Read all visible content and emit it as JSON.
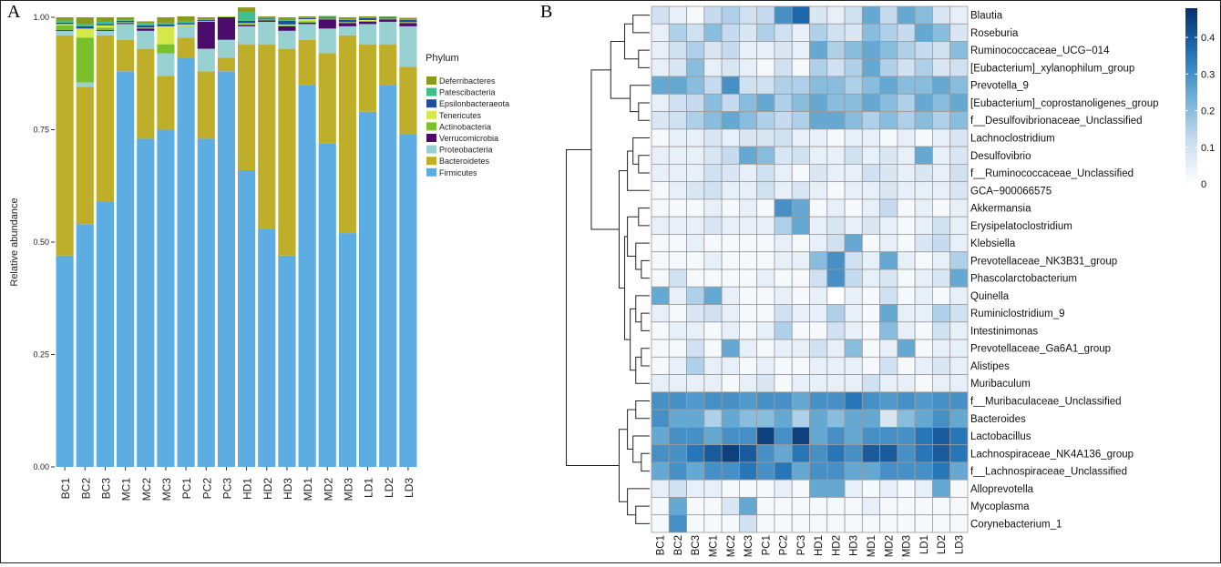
{
  "panels": {
    "a": "A",
    "b": "B"
  },
  "chart_data": [
    {
      "type": "bar",
      "stacked": true,
      "ylabel": "Relative abundance",
      "ylim": [
        0,
        1
      ],
      "yticks": [
        "0.00",
        "0.25",
        "0.50",
        "0.75",
        "1.00"
      ],
      "legend_title": "Phylum",
      "legend_position": "right",
      "categories": [
        "BC1",
        "BC2",
        "BC3",
        "MC1",
        "MC2",
        "MC3",
        "PC1",
        "PC2",
        "PC3",
        "HD1",
        "HD2",
        "HD3",
        "MD1",
        "MD2",
        "MD3",
        "LD1",
        "LD2",
        "LD3"
      ],
      "series": [
        {
          "name": "Firmicutes",
          "color": "#5dade2",
          "values": [
            0.47,
            0.54,
            0.59,
            0.88,
            0.73,
            0.75,
            0.91,
            0.73,
            0.88,
            0.66,
            0.53,
            0.47,
            0.85,
            0.72,
            0.52,
            0.79,
            0.85,
            0.74
          ]
        },
        {
          "name": "Bacteroidetes",
          "color": "#bfae2a",
          "values": [
            0.49,
            0.305,
            0.37,
            0.07,
            0.2,
            0.12,
            0.045,
            0.15,
            0.03,
            0.28,
            0.41,
            0.46,
            0.1,
            0.2,
            0.44,
            0.15,
            0.09,
            0.15
          ]
        },
        {
          "name": "Proteobacteria",
          "color": "#98d1d1",
          "values": [
            0.01,
            0.01,
            0.01,
            0.035,
            0.04,
            0.05,
            0.025,
            0.05,
            0.04,
            0.04,
            0.05,
            0.04,
            0.035,
            0.055,
            0.02,
            0.045,
            0.05,
            0.09
          ]
        },
        {
          "name": "Verrucomicrobia",
          "color": "#4b0c6b",
          "values": [
            0.002,
            0.0,
            0.002,
            0.002,
            0.005,
            0.0,
            0.0,
            0.06,
            0.05,
            0.003,
            0.003,
            0.01,
            0.003,
            0.02,
            0.007,
            0.005,
            0.005,
            0.007
          ]
        },
        {
          "name": "Actinobacteria",
          "color": "#7bbf2a",
          "values": [
            0.01,
            0.1,
            0.005,
            0.001,
            0.001,
            0.02,
            0.001,
            0.001,
            0.001,
            0.002,
            0.001,
            0.002,
            0.003,
            0.001,
            0.001,
            0.002,
            0.001,
            0.001
          ]
        },
        {
          "name": "Tenericutes",
          "color": "#d4e84a",
          "values": [
            0.003,
            0.02,
            0.005,
            0.001,
            0.001,
            0.04,
            0.003,
            0.001,
            0.001,
            0.002,
            0.001,
            0.002,
            0.005,
            0.001,
            0.001,
            0.002,
            0.001,
            0.001
          ]
        },
        {
          "name": "Epsilonbacteraeota",
          "color": "#1f4e9c",
          "values": [
            0.003,
            0.005,
            0.003,
            0.003,
            0.005,
            0.004,
            0.003,
            0.002,
            0.0,
            0.005,
            0.002,
            0.008,
            0.002,
            0.002,
            0.005,
            0.004,
            0.002,
            0.005
          ]
        },
        {
          "name": "Patescibacteria",
          "color": "#3fbf8f",
          "values": [
            0.005,
            0.005,
            0.005,
            0.003,
            0.005,
            0.004,
            0.005,
            0.002,
            0.0,
            0.02,
            0.002,
            0.002,
            0.002,
            0.002,
            0.002,
            0.002,
            0.002,
            0.002
          ]
        },
        {
          "name": "Deferribacteres",
          "color": "#8a9a1b",
          "values": [
            0.007,
            0.015,
            0.01,
            0.005,
            0.004,
            0.012,
            0.01,
            0.004,
            0.0,
            0.01,
            0.003,
            0.006,
            0.002,
            0.002,
            0.004,
            0.002,
            0.001,
            0.003
          ]
        }
      ]
    },
    {
      "type": "heatmap",
      "columns": [
        "BC1",
        "BC2",
        "BC3",
        "MC1",
        "MC2",
        "MC3",
        "PC1",
        "PC2",
        "PC3",
        "HD1",
        "HD2",
        "HD3",
        "MD1",
        "MD2",
        "MD3",
        "LD1",
        "LD2",
        "LD3"
      ],
      "rows": [
        "Blautia",
        "Roseburia",
        "Ruminococcaceae_UCG−014",
        "[Eubacterium]_xylanophilum_group",
        "Prevotella_9",
        "[Eubacterium]_coprostanoligenes_group",
        "f__Desulfovibrionaceae_Unclassified",
        "Lachnoclostridium",
        "Desulfovibrio",
        "f__Ruminococcaceae_Unclassified",
        "GCA−900066575",
        "Akkermansia",
        "Erysipelatoclostridium",
        "Klebsiella",
        "Prevotellaceae_NK3B31_group",
        "Phascolarctobacterium",
        "Quinella",
        "Ruminiclostridium_9",
        "Intestinimonas",
        "Prevotellaceae_Ga6A1_group",
        "Alistipes",
        "Muribaculum",
        "f__Muribaculaceae_Unclassified",
        "Bacteroides",
        "Lactobacillus",
        "Lachnospiraceae_NK4A136_group",
        "f__Lachnospiraceae_Unclassified",
        "Alloprevotella",
        "Mycoplasma",
        "Corynebacterium_1"
      ],
      "values": [
        [
          0.1,
          0.05,
          0.02,
          0.12,
          0.15,
          0.1,
          0.12,
          0.3,
          0.38,
          0.08,
          0.05,
          0.1,
          0.25,
          0.12,
          0.25,
          0.2,
          0.08,
          0.05
        ],
        [
          0.05,
          0.15,
          0.1,
          0.2,
          0.12,
          0.08,
          0.15,
          0.1,
          0.05,
          0.15,
          0.1,
          0.08,
          0.2,
          0.15,
          0.12,
          0.25,
          0.2,
          0.08
        ],
        [
          0.05,
          0.1,
          0.15,
          0.08,
          0.12,
          0.05,
          0.05,
          0.08,
          0.05,
          0.25,
          0.15,
          0.2,
          0.25,
          0.2,
          0.15,
          0.12,
          0.1,
          0.2
        ],
        [
          0.05,
          0.08,
          0.2,
          0.05,
          0.08,
          0.05,
          0.02,
          0.1,
          0.02,
          0.15,
          0.1,
          0.15,
          0.25,
          0.15,
          0.1,
          0.15,
          0.08,
          0.1
        ],
        [
          0.25,
          0.25,
          0.2,
          0.12,
          0.3,
          0.1,
          0.1,
          0.15,
          0.15,
          0.2,
          0.2,
          0.15,
          0.2,
          0.25,
          0.2,
          0.2,
          0.25,
          0.2
        ],
        [
          0.05,
          0.1,
          0.12,
          0.2,
          0.12,
          0.2,
          0.25,
          0.15,
          0.2,
          0.25,
          0.2,
          0.2,
          0.25,
          0.2,
          0.15,
          0.25,
          0.2,
          0.25
        ],
        [
          0.08,
          0.1,
          0.15,
          0.2,
          0.25,
          0.2,
          0.15,
          0.12,
          0.15,
          0.25,
          0.25,
          0.2,
          0.15,
          0.2,
          0.15,
          0.2,
          0.15,
          0.2
        ],
        [
          0.02,
          0.05,
          0.05,
          0.08,
          0.05,
          0.08,
          0.08,
          0.1,
          0.05,
          0.05,
          0.02,
          0.05,
          0.05,
          0.02,
          0.05,
          0.02,
          0.05,
          0.08
        ],
        [
          0.05,
          0.05,
          0.05,
          0.08,
          0.12,
          0.25,
          0.2,
          0.08,
          0.1,
          0.05,
          0.05,
          0.1,
          0.05,
          0.08,
          0.05,
          0.25,
          0.05,
          0.08
        ],
        [
          0.05,
          0.05,
          0.05,
          0.1,
          0.08,
          0.05,
          0.1,
          0.05,
          0.02,
          0.08,
          0.05,
          0.05,
          0.1,
          0.08,
          0.05,
          0.08,
          0.05,
          0.1
        ],
        [
          0.02,
          0.05,
          0.08,
          0.1,
          0.05,
          0.05,
          0.1,
          0.05,
          0.08,
          0.05,
          0.02,
          0.05,
          0.05,
          0.08,
          0.05,
          0.05,
          0.05,
          0.08
        ],
        [
          0.02,
          0.02,
          0.02,
          0.05,
          0.02,
          0.05,
          0.02,
          0.3,
          0.25,
          0.02,
          0.05,
          0.02,
          0.05,
          0.12,
          0.02,
          0.05,
          0.02,
          0.05
        ],
        [
          0.05,
          0.05,
          0.05,
          0.08,
          0.05,
          0.05,
          0.05,
          0.15,
          0.25,
          0.05,
          0.08,
          0.05,
          0.08,
          0.05,
          0.02,
          0.05,
          0.1,
          0.05
        ],
        [
          0.02,
          0.02,
          0.05,
          0.02,
          0.02,
          0.02,
          0.02,
          0.05,
          0.02,
          0.05,
          0.1,
          0.25,
          0.02,
          0.05,
          0.02,
          0.08,
          0.12,
          0.05
        ],
        [
          0.02,
          0.02,
          0.02,
          0.05,
          0.02,
          0.02,
          0.02,
          0.05,
          0.05,
          0.2,
          0.3,
          0.1,
          0.05,
          0.25,
          0.05,
          0.02,
          0.05,
          0.15
        ],
        [
          0.02,
          0.1,
          0.02,
          0.02,
          0.02,
          0.02,
          0.05,
          0.02,
          0.02,
          0.1,
          0.3,
          0.12,
          0.05,
          0.08,
          0.02,
          0.05,
          0.08,
          0.25
        ],
        [
          0.25,
          0.05,
          0.15,
          0.25,
          0.05,
          0.02,
          0.02,
          0.05,
          0.02,
          0.05,
          0.0,
          0.05,
          0.02,
          0.1,
          0.02,
          0.05,
          0.02,
          0.05
        ],
        [
          0.05,
          0.02,
          0.08,
          0.1,
          0.05,
          0.02,
          0.02,
          0.1,
          0.05,
          0.05,
          0.15,
          0.05,
          0.02,
          0.25,
          0.05,
          0.05,
          0.15,
          0.1
        ],
        [
          0.02,
          0.05,
          0.05,
          0.02,
          0.05,
          0.02,
          0.05,
          0.15,
          0.02,
          0.02,
          0.1,
          0.05,
          0.02,
          0.2,
          0.05,
          0.02,
          0.1,
          0.05
        ],
        [
          0.02,
          0.02,
          0.1,
          0.02,
          0.25,
          0.05,
          0.02,
          0.05,
          0.05,
          0.1,
          0.05,
          0.2,
          0.02,
          0.05,
          0.25,
          0.02,
          0.05,
          0.05
        ],
        [
          0.02,
          0.05,
          0.15,
          0.05,
          0.05,
          0.02,
          0.05,
          0.02,
          0.02,
          0.05,
          0.05,
          0.05,
          0.02,
          0.1,
          0.02,
          0.05,
          0.08,
          0.05
        ],
        [
          0.05,
          0.05,
          0.05,
          0.05,
          0.02,
          0.05,
          0.08,
          0.02,
          0.05,
          0.05,
          0.05,
          0.05,
          0.1,
          0.05,
          0.05,
          0.02,
          0.05,
          0.05
        ],
        [
          0.3,
          0.3,
          0.28,
          0.3,
          0.3,
          0.28,
          0.3,
          0.3,
          0.25,
          0.3,
          0.3,
          0.35,
          0.3,
          0.28,
          0.3,
          0.28,
          0.3,
          0.3
        ],
        [
          0.3,
          0.25,
          0.25,
          0.15,
          0.25,
          0.2,
          0.2,
          0.25,
          0.15,
          0.25,
          0.2,
          0.25,
          0.25,
          0.08,
          0.2,
          0.25,
          0.3,
          0.25
        ],
        [
          0.25,
          0.3,
          0.3,
          0.25,
          0.3,
          0.3,
          0.45,
          0.3,
          0.45,
          0.25,
          0.3,
          0.25,
          0.3,
          0.3,
          0.3,
          0.35,
          0.4,
          0.35
        ],
        [
          0.3,
          0.3,
          0.35,
          0.4,
          0.45,
          0.4,
          0.3,
          0.25,
          0.35,
          0.3,
          0.35,
          0.3,
          0.4,
          0.4,
          0.3,
          0.35,
          0.4,
          0.35
        ],
        [
          0.25,
          0.3,
          0.25,
          0.3,
          0.3,
          0.35,
          0.3,
          0.35,
          0.25,
          0.3,
          0.3,
          0.25,
          0.25,
          0.3,
          0.3,
          0.3,
          0.35,
          0.25
        ],
        [
          0.05,
          0.1,
          0.05,
          0.05,
          0.02,
          0.02,
          0.02,
          0.05,
          0.02,
          0.25,
          0.25,
          0.05,
          0.02,
          0.05,
          0.02,
          0.05,
          0.25,
          0.02
        ],
        [
          0.02,
          0.25,
          0.02,
          0.02,
          0.08,
          0.25,
          0.02,
          0.02,
          0.02,
          0.02,
          0.02,
          0.02,
          0.05,
          0.02,
          0.02,
          0.02,
          0.02,
          0.02
        ],
        [
          0.02,
          0.3,
          0.02,
          0.02,
          0.02,
          0.1,
          0.02,
          0.02,
          0.02,
          0.02,
          0.02,
          0.02,
          0.02,
          0.02,
          0.02,
          0.02,
          0.02,
          0.02
        ]
      ],
      "colorbar": {
        "min": 0,
        "max": 0.48,
        "ticks": [
          0,
          0.1,
          0.2,
          0.3,
          0.4
        ],
        "low_color": "#ffffff",
        "high_color": "#08306b"
      }
    }
  ]
}
